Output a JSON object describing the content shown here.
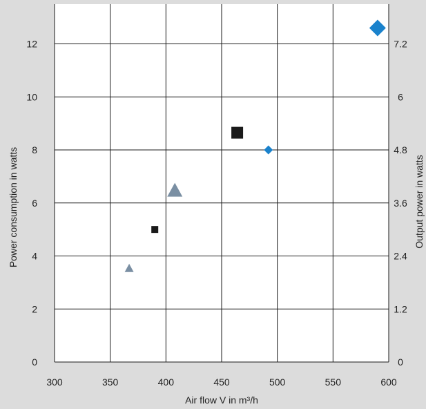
{
  "chart_data": {
    "type": "scatter",
    "title": "",
    "xlabel": "Air flow V in m³/h",
    "ylabel": "Power consumption in watts",
    "y2label": "Output power in watts",
    "xlim": [
      300,
      600
    ],
    "ylim": [
      0,
      13.5
    ],
    "y2lim": [
      0,
      8.1
    ],
    "grid": true,
    "x_ticks": [
      300,
      350,
      400,
      450,
      500,
      550,
      600
    ],
    "y_ticks": [
      0,
      2,
      4,
      6,
      8,
      10,
      12
    ],
    "y2_ticks": [
      "0",
      "1.2",
      "2.4",
      "3.6",
      "4.8",
      "6",
      "7.2"
    ],
    "colors": {
      "background_band": "#dcdcdc",
      "grid": "#1a1a1a",
      "square": "#1a1a1a",
      "triangle": "#7a8fa3",
      "diamond": "#1a82cc"
    },
    "points": [
      {
        "x": 367,
        "y": 3.55,
        "marker": "triangle",
        "size": "small"
      },
      {
        "x": 408,
        "y": 6.5,
        "marker": "triangle",
        "size": "large"
      },
      {
        "x": 390,
        "y": 5.0,
        "marker": "square",
        "size": "small"
      },
      {
        "x": 464,
        "y": 8.65,
        "marker": "square",
        "size": "large"
      },
      {
        "x": 492,
        "y": 8.0,
        "marker": "diamond",
        "size": "small"
      },
      {
        "x": 590,
        "y": 12.6,
        "marker": "diamond",
        "size": "large"
      }
    ]
  }
}
